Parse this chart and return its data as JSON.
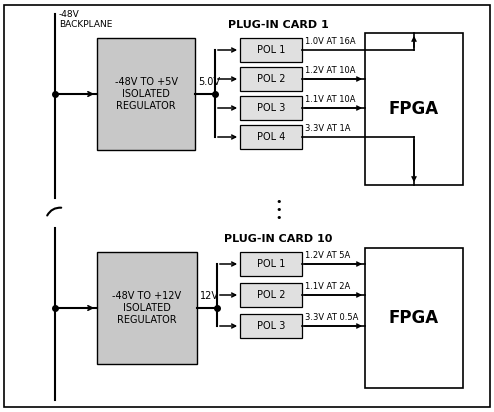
{
  "fig_width": 4.94,
  "fig_height": 4.12,
  "bg_color": "#ffffff",
  "box_fill_reg": "#c8c8c8",
  "box_fill_pol": "#e0e0e0",
  "card1_title": "PLUG-IN CARD 1",
  "card10_title": "PLUG-IN CARD 10",
  "backplane_label": "-48V\nBACKPLANE",
  "reg1_label": "-48V TO +5V\nISOLATED\nREGULATOR",
  "reg10_label": "-48V TO +12V\nISOLATED\nREGULATOR",
  "bus1_label": "5.0V",
  "bus10_label": "12V",
  "card1_pols": [
    "POL 1",
    "POL 2",
    "POL 3",
    "POL 4"
  ],
  "card1_outputs": [
    "1.0V AT 16A",
    "1.2V AT 10A",
    "1.1V AT 10A",
    "3.3V AT 1A"
  ],
  "card10_pols": [
    "POL 1",
    "POL 2",
    "POL 3"
  ],
  "card10_outputs": [
    "1.2V AT 5A",
    "1.1V AT 2A",
    "3.3V AT 0.5A"
  ],
  "fpga_label": "FPGA"
}
